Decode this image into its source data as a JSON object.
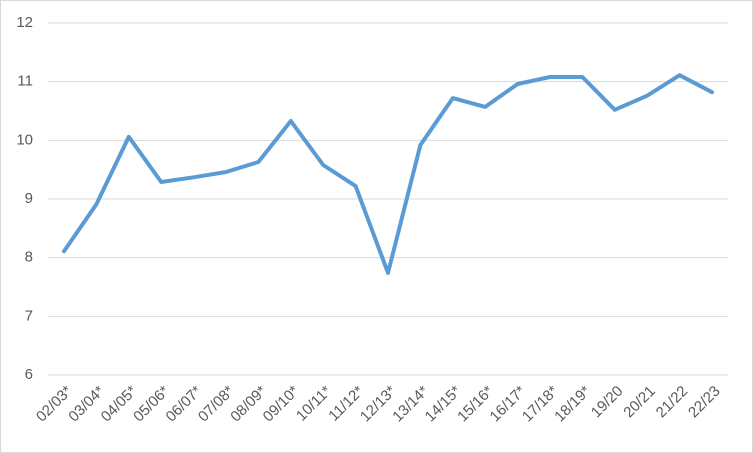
{
  "chart_data": {
    "type": "line",
    "categories": [
      "02/03*",
      "03/04*",
      "04/05*",
      "05/06*",
      "06/07*",
      "07/08*",
      "08/09*",
      "09/10*",
      "10/11*",
      "11/12*",
      "12/13*",
      "13/14*",
      "14/15*",
      "15/16*",
      "16/17*",
      "17/18*",
      "18/19*",
      "19/20",
      "20/21",
      "21/22",
      "22/23"
    ],
    "values": [
      8.11,
      8.91,
      10.06,
      9.29,
      9.37,
      9.46,
      9.63,
      10.33,
      9.58,
      9.22,
      7.74,
      9.92,
      10.72,
      10.57,
      10.96,
      11.08,
      11.08,
      10.52,
      10.76,
      11.11,
      10.82
    ],
    "color": "#5b9bd5",
    "ylim": [
      6,
      12
    ],
    "yticks": [
      6,
      7,
      8,
      9,
      10,
      11,
      12
    ],
    "grid": true
  }
}
